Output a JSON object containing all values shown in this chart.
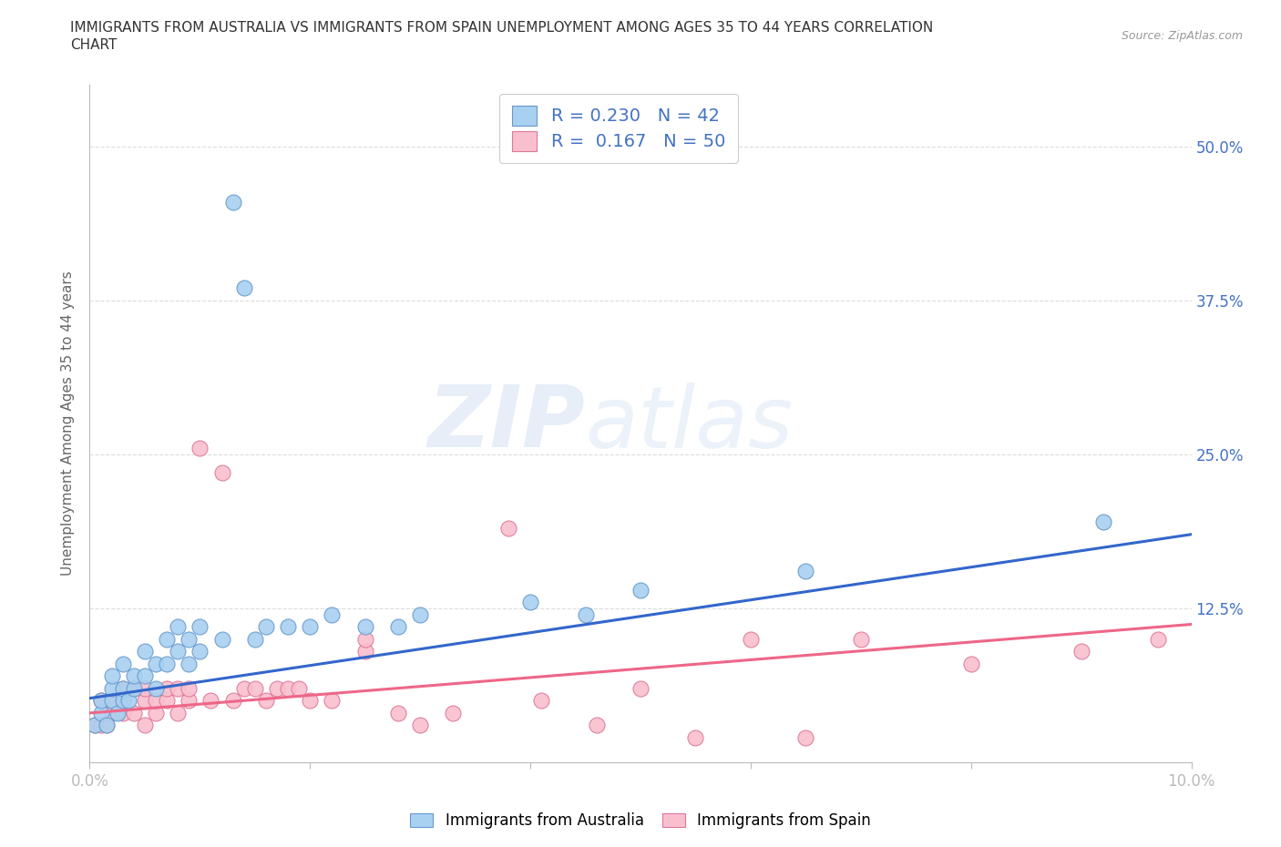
{
  "title_line1": "IMMIGRANTS FROM AUSTRALIA VS IMMIGRANTS FROM SPAIN UNEMPLOYMENT AMONG AGES 35 TO 44 YEARS CORRELATION",
  "title_line2": "CHART",
  "source_text": "Source: ZipAtlas.com",
  "ylabel": "Unemployment Among Ages 35 to 44 years",
  "xlim": [
    0.0,
    0.1
  ],
  "ylim": [
    0.0,
    0.55
  ],
  "x_tick_positions": [
    0.0,
    0.02,
    0.04,
    0.06,
    0.08,
    0.1
  ],
  "x_tick_labels": [
    "0.0%",
    "",
    "",
    "",
    "",
    "10.0%"
  ],
  "y_tick_positions": [
    0.0,
    0.125,
    0.25,
    0.375,
    0.5
  ],
  "y_tick_labels_right": [
    "",
    "12.5%",
    "25.0%",
    "37.5%",
    "50.0%"
  ],
  "australia_color": "#A8D0F0",
  "australia_edge": "#6699CC",
  "spain_color": "#F9BFCE",
  "spain_edge": "#DD7799",
  "regression_australia_color": "#3366CC",
  "regression_spain_color": "#EE6688",
  "R_australia": 0.23,
  "N_australia": 42,
  "R_spain": 0.167,
  "N_spain": 50,
  "australia_x": [
    0.0005,
    0.001,
    0.001,
    0.0015,
    0.002,
    0.002,
    0.002,
    0.0025,
    0.003,
    0.003,
    0.003,
    0.0035,
    0.004,
    0.004,
    0.005,
    0.005,
    0.006,
    0.006,
    0.007,
    0.007,
    0.008,
    0.008,
    0.009,
    0.009,
    0.01,
    0.01,
    0.012,
    0.013,
    0.014,
    0.015,
    0.016,
    0.018,
    0.02,
    0.022,
    0.025,
    0.028,
    0.03,
    0.04,
    0.045,
    0.05,
    0.065,
    0.092
  ],
  "australia_y": [
    0.03,
    0.04,
    0.05,
    0.03,
    0.05,
    0.06,
    0.07,
    0.04,
    0.05,
    0.06,
    0.08,
    0.05,
    0.06,
    0.07,
    0.07,
    0.09,
    0.06,
    0.08,
    0.08,
    0.1,
    0.09,
    0.11,
    0.08,
    0.1,
    0.09,
    0.11,
    0.1,
    0.455,
    0.385,
    0.1,
    0.11,
    0.11,
    0.11,
    0.12,
    0.11,
    0.11,
    0.12,
    0.13,
    0.12,
    0.14,
    0.155,
    0.195
  ],
  "spain_x": [
    0.0005,
    0.001,
    0.001,
    0.0015,
    0.002,
    0.002,
    0.003,
    0.003,
    0.003,
    0.004,
    0.004,
    0.005,
    0.005,
    0.005,
    0.006,
    0.006,
    0.007,
    0.007,
    0.008,
    0.008,
    0.009,
    0.009,
    0.01,
    0.011,
    0.012,
    0.013,
    0.014,
    0.015,
    0.016,
    0.017,
    0.018,
    0.019,
    0.02,
    0.022,
    0.025,
    0.025,
    0.028,
    0.03,
    0.033,
    0.038,
    0.041,
    0.046,
    0.05,
    0.055,
    0.06,
    0.065,
    0.07,
    0.08,
    0.09,
    0.097
  ],
  "spain_y": [
    0.03,
    0.03,
    0.05,
    0.03,
    0.04,
    0.05,
    0.04,
    0.05,
    0.06,
    0.04,
    0.06,
    0.03,
    0.05,
    0.06,
    0.04,
    0.05,
    0.05,
    0.06,
    0.04,
    0.06,
    0.05,
    0.06,
    0.255,
    0.05,
    0.235,
    0.05,
    0.06,
    0.06,
    0.05,
    0.06,
    0.06,
    0.06,
    0.05,
    0.05,
    0.09,
    0.1,
    0.04,
    0.03,
    0.04,
    0.19,
    0.05,
    0.03,
    0.06,
    0.02,
    0.1,
    0.02,
    0.1,
    0.08,
    0.09,
    0.1
  ],
  "watermark_zip": "ZIP",
  "watermark_atlas": "atlas",
  "background_color": "#FFFFFF",
  "grid_color": "#DDDDDD",
  "title_color": "#333333",
  "axis_label_color": "#666666",
  "tick_color": "#4472C4"
}
